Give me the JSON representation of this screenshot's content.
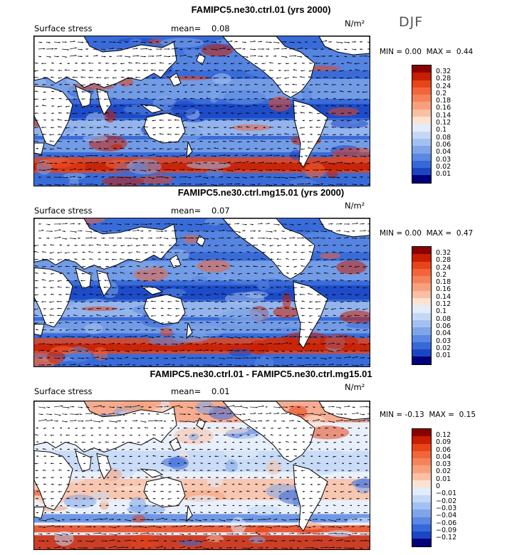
{
  "season": "DJF",
  "panels": [
    {
      "title": "FAMIPC5.ne30.ctrl.01 (yrs 2000)",
      "field": "Surface stress",
      "mean_label": "mean=",
      "mean_value": "0.08",
      "units": "N/m²",
      "min_label": "MIN =",
      "min_value": "0.00",
      "max_label": "MAX =",
      "max_value": "0.44",
      "colorbar": {
        "labels": [
          "0.32",
          "0.28",
          "0.24",
          "0.2",
          "0.18",
          "0.16",
          "0.14",
          "0.12",
          "0.1",
          "0.08",
          "0.06",
          "0.04",
          "0.03",
          "0.02",
          "0.01"
        ],
        "colors": [
          "#8b0000",
          "#c81e00",
          "#e8441a",
          "#f2653a",
          "#f5835a",
          "#f8a07c",
          "#fac0a4",
          "#fde2d0",
          "#e2ecfb",
          "#c4d8f6",
          "#a3c1f0",
          "#7ea5e9",
          "#5a88e2",
          "#3768d8",
          "#1a46c4",
          "#00007a"
        ]
      }
    },
    {
      "title": "FAMIPC5.ne30.ctrl.mg15.01 (yrs 2000)",
      "field": "Surface stress",
      "mean_label": "mean=",
      "mean_value": "0.07",
      "units": "N/m²",
      "min_label": "MIN =",
      "min_value": "0.00",
      "max_label": "MAX =",
      "max_value": "0.47",
      "colorbar": {
        "labels": [
          "0.32",
          "0.28",
          "0.24",
          "0.2",
          "0.18",
          "0.16",
          "0.14",
          "0.12",
          "0.1",
          "0.08",
          "0.06",
          "0.04",
          "0.03",
          "0.02",
          "0.01"
        ],
        "colors": [
          "#8b0000",
          "#c81e00",
          "#e8441a",
          "#f2653a",
          "#f5835a",
          "#f8a07c",
          "#fac0a4",
          "#fde2d0",
          "#e2ecfb",
          "#c4d8f6",
          "#a3c1f0",
          "#7ea5e9",
          "#5a88e2",
          "#3768d8",
          "#1a46c4",
          "#00007a"
        ]
      }
    },
    {
      "title": "FAMIPC5.ne30.ctrl.01 - FAMIPC5.ne30.ctrl.mg15.01",
      "field": "Surface stress",
      "mean_label": "mean=",
      "mean_value": "0.01",
      "units": "N/m²",
      "min_label": "MIN =",
      "min_value": "-0.13",
      "max_label": "MAX =",
      "max_value": "0.15",
      "colorbar": {
        "labels": [
          "0.12",
          "0.09",
          "0.06",
          "0.04",
          "0.03",
          "0.02",
          "0.01",
          "0",
          "−0.01",
          "−0.02",
          "−0.03",
          "−0.04",
          "−0.06",
          "−0.09",
          "−0.12"
        ],
        "colors": [
          "#8b0000",
          "#c81e00",
          "#e8441a",
          "#f2653a",
          "#f5835a",
          "#f8a07c",
          "#fac0a4",
          "#fde2d0",
          "#e2ecfb",
          "#c4d8f6",
          "#a3c1f0",
          "#7ea5e9",
          "#5a88e2",
          "#3768d8",
          "#1a46c4",
          "#00007a"
        ]
      }
    }
  ]
}
